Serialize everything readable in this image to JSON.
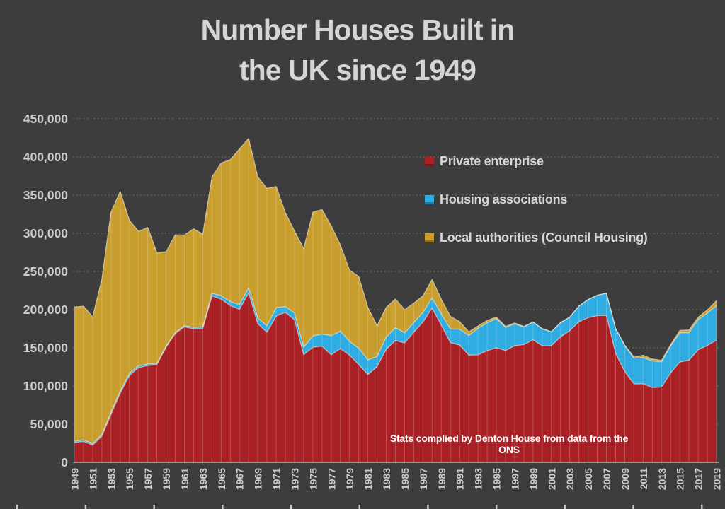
{
  "title": {
    "line1": "Number Houses Built in",
    "line2": "the UK since 1949"
  },
  "legend": {
    "position": "inside-top-right",
    "items": [
      {
        "label": "Private enterprise",
        "color": "#A92025"
      },
      {
        "label": "Housing associations",
        "color": "#2FACE1"
      },
      {
        "label": "Local authorities (Council Housing)",
        "color": "#C89E2F"
      }
    ]
  },
  "annotation": {
    "text": "Stats complied by Denton House from data from the ONS",
    "color": "#FFFFFF"
  },
  "colors": {
    "background": "#3D3D3D",
    "title_text": "#D5D5D5",
    "axis_text": "#CBCBCB",
    "gridline": "#9A9A9A",
    "year_line": "rgba(255,255,255,0.22)",
    "boundary_stroke": "rgba(255,246,235,0.55)",
    "bottom_tick": "#C9C4C0"
  },
  "chart_data": {
    "type": "area",
    "stacked": true,
    "title": "Number Houses Built in the UK since 1949",
    "grid": "horizontal-dotted",
    "legend_position": "inside-top-right",
    "values_unit": "thousands of dwellings completed per year",
    "ylim": [
      0,
      450000
    ],
    "y_axis": {
      "max": 450000,
      "min": 0,
      "tick_labels": [
        "0",
        "50,000",
        "100,000",
        "150,000",
        "200,000",
        "250,000",
        "300,000",
        "350,000",
        "400,000",
        "450,000"
      ]
    },
    "x_axis": {
      "first_year": 1949,
      "last_year": 2019,
      "tick_labels": [
        "1949",
        "1951",
        "1953",
        "1955",
        "1957",
        "1959",
        "1961",
        "1963",
        "1965",
        "1967",
        "1969",
        "1971",
        "1973",
        "1975",
        "1977",
        "1979",
        "1981",
        "1983",
        "1985",
        "1987",
        "1989",
        "1991",
        "1993",
        "1995",
        "1997",
        "1999",
        "2001",
        "2003",
        "2005",
        "2007",
        "2009",
        "2011",
        "2013",
        "2015",
        "2017",
        "2019"
      ]
    },
    "x": [
      1949,
      1950,
      1951,
      1952,
      1953,
      1954,
      1955,
      1956,
      1957,
      1958,
      1959,
      1960,
      1961,
      1962,
      1963,
      1964,
      1965,
      1966,
      1967,
      1968,
      1969,
      1970,
      1971,
      1972,
      1973,
      1974,
      1975,
      1976,
      1977,
      1978,
      1979,
      1980,
      1981,
      1982,
      1983,
      1984,
      1985,
      1986,
      1987,
      1988,
      1989,
      1990,
      1991,
      1992,
      1993,
      1994,
      1995,
      1996,
      1997,
      1998,
      1999,
      2000,
      2001,
      2002,
      2003,
      2004,
      2005,
      2006,
      2007,
      2008,
      2009,
      2010,
      2011,
      2012,
      2013,
      2014,
      2015,
      2016,
      2017,
      2018,
      2019
    ],
    "series": [
      {
        "name": "Private enterprise",
        "color": "#A92025",
        "values": [
          25.8,
          27.4,
          22.6,
          34.3,
          62.9,
          90.6,
          113.5,
          124.2,
          126.8,
          128.1,
          150.7,
          168.6,
          177.5,
          174.8,
          174.9,
          218.1,
          213.8,
          205.4,
          200.4,
          221.9,
          181.7,
          170.3,
          191.6,
          196.5,
          186.6,
          140.9,
          150.8,
          152.2,
          140.8,
          149.0,
          140.5,
          128.1,
          114.9,
          125.4,
          148.1,
          159.4,
          156.5,
          170.4,
          183.7,
          202.0,
          179.7,
          156.8,
          153.6,
          140.5,
          140.8,
          146.3,
          150.0,
          146.5,
          152.8,
          154.3,
          160.5,
          152.7,
          152.8,
          164.3,
          172.4,
          184.1,
          189.4,
          192.1,
          192.4,
          142.9,
          118.9,
          102.7,
          103.0,
          98.0,
          98.6,
          117.0,
          131.5,
          133.6,
          147.5,
          153.0,
          160.2
        ]
      },
      {
        "name": "Housing associations",
        "color": "#2FACE1",
        "values": [
          1.8,
          2.0,
          1.9,
          2.2,
          2.8,
          2.9,
          2.9,
          2.4,
          1.9,
          1.4,
          1.5,
          1.4,
          1.6,
          1.9,
          2.5,
          3.5,
          4.4,
          5.2,
          6.2,
          6.5,
          7.1,
          8.5,
          10.9,
          7.7,
          8.9,
          9.9,
          14.7,
          15.8,
          25.1,
          22.8,
          17.8,
          21.4,
          19.4,
          13.1,
          16.1,
          17.0,
          13.1,
          12.6,
          12.7,
          13.5,
          14.6,
          17.9,
          20.8,
          25.6,
          34.6,
          36.6,
          38.2,
          30.1,
          28.6,
          22.9,
          23.2,
          22.2,
          18.1,
          18.6,
          17.6,
          20.5,
          23.7,
          26.6,
          29.0,
          32.2,
          33.9,
          33.8,
          34.2,
          34.9,
          33.0,
          35.2,
          38.2,
          36.1,
          39.4,
          42.4,
          45.2
        ]
      },
      {
        "name": "Local authorities (Council Housing)",
        "color": "#C89E2F",
        "values": [
          176.0,
          175.0,
          166.0,
          203.7,
          262.0,
          261.3,
          200.7,
          176.0,
          179.0,
          145.0,
          123.7,
          128.0,
          118.6,
          129.2,
          121.5,
          152.0,
          173.8,
          185.9,
          203.9,
          196.0,
          185.1,
          180.1,
          158.9,
          122.8,
          107.5,
          129.2,
          162.3,
          163.0,
          143.9,
          112.7,
          93.5,
          93.9,
          68.6,
          40.3,
          38.7,
          37.6,
          30.4,
          25.4,
          21.8,
          24.0,
          19.4,
          16.4,
          9.9,
          4.9,
          3.1,
          2.9,
          2.3,
          1.5,
          1.3,
          0.9,
          0.3,
          0.3,
          0.2,
          0.2,
          0.2,
          0.1,
          0.2,
          0.3,
          0.3,
          0.5,
          0.8,
          1.4,
          3.1,
          2.5,
          1.9,
          2.0,
          3.1,
          3.6,
          3.3,
          4.2,
          6.3
        ]
      }
    ]
  }
}
